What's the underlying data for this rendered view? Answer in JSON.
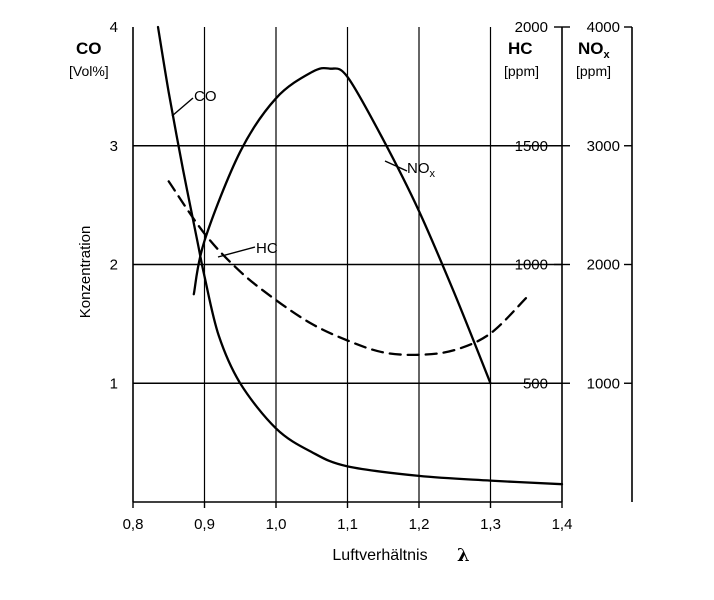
{
  "chart_data": {
    "type": "line",
    "xlabel": "Luftverhältnis",
    "xlabel_symbol": "λ",
    "ylabel": "Konzentration",
    "xlim": [
      0.8,
      1.4
    ],
    "x_ticks": [
      "0,8",
      "0,9",
      "1,0",
      "1,1",
      "1,2",
      "1,3",
      "1,4"
    ],
    "axes": {
      "co": {
        "head": "CO",
        "unit": "[Vol%]",
        "ylim": [
          0,
          4
        ],
        "ticks": [
          "1",
          "2",
          "3",
          "4"
        ]
      },
      "hc": {
        "head": "HC",
        "unit": "[ppm]",
        "ylim": [
          0,
          2000
        ],
        "ticks": [
          "500",
          "1000",
          "1500",
          "2000"
        ]
      },
      "nox": {
        "head": "NO",
        "head_sub": "x",
        "unit": "[ppm]",
        "ylim": [
          0,
          4000
        ],
        "ticks": [
          "1000",
          "2000",
          "3000",
          "4000"
        ]
      }
    },
    "series": [
      {
        "name": "CO",
        "axis": "co",
        "style": "solid",
        "x": [
          0.835,
          0.85,
          0.87,
          0.89,
          0.9,
          0.92,
          0.95,
          1.0,
          1.05,
          1.1,
          1.2,
          1.3,
          1.4
        ],
        "y": [
          4.0,
          3.45,
          2.8,
          2.2,
          1.9,
          1.4,
          1.0,
          0.62,
          0.42,
          0.3,
          0.22,
          0.18,
          0.15
        ]
      },
      {
        "name": "HC",
        "axis": "hc",
        "style": "dashed",
        "x": [
          0.85,
          0.9,
          0.95,
          1.0,
          1.05,
          1.1,
          1.15,
          1.2,
          1.25,
          1.3,
          1.35
        ],
        "y": [
          1350,
          1130,
          970,
          850,
          750,
          680,
          630,
          620,
          640,
          710,
          860
        ]
      },
      {
        "name": "NO",
        "name_sub": "x",
        "axis": "nox",
        "style": "solid",
        "x": [
          0.885,
          0.9,
          0.95,
          1.0,
          1.05,
          1.075,
          1.1,
          1.15,
          1.2,
          1.25,
          1.3
        ],
        "y": [
          1750,
          2200,
          2950,
          3400,
          3620,
          3650,
          3580,
          3050,
          2450,
          1750,
          1000
        ]
      }
    ],
    "grid": true
  }
}
